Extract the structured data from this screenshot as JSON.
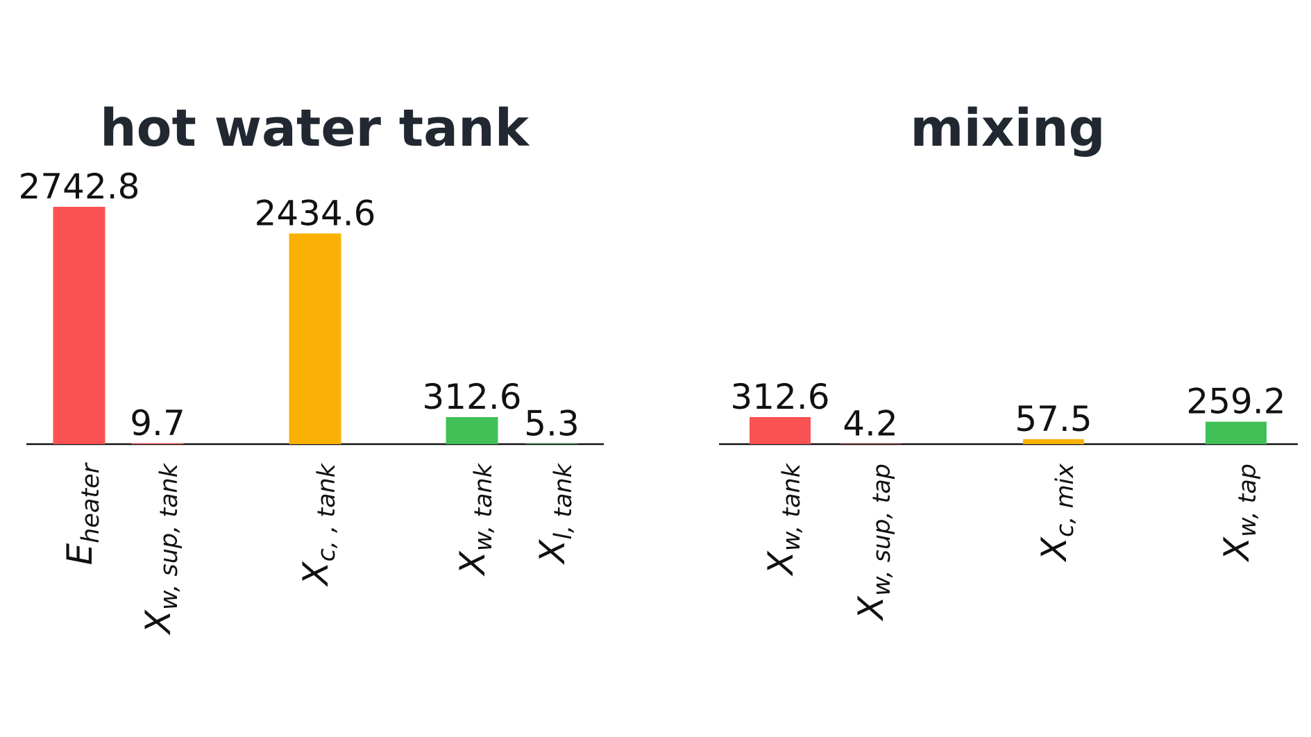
{
  "chart_data": [
    {
      "type": "bar",
      "title": "hot water tank",
      "categories": [
        {
          "main": "E",
          "sub": "heater"
        },
        {
          "main": "X",
          "sub": "w, sup, tank"
        },
        {
          "main": "X",
          "sub": "c, , tank"
        },
        {
          "main": "X",
          "sub": "w, tank"
        },
        {
          "main": "X",
          "sub": "l, tank"
        }
      ],
      "values": [
        2742.8,
        9.7,
        2434.6,
        312.6,
        5.3
      ],
      "value_labels": [
        "2742.8",
        "9.7",
        "2434.6",
        "312.6",
        "5.3"
      ],
      "colors": [
        "#fa5252",
        "#fa5252",
        "#fab005",
        "#40c057",
        "#40c057"
      ],
      "xlabel": "",
      "ylabel": "",
      "ylim": [
        0,
        2742.8
      ],
      "grid": false
    },
    {
      "type": "bar",
      "title": "mixing",
      "categories": [
        {
          "main": "X",
          "sub": "w, tank"
        },
        {
          "main": "X",
          "sub": "w, sup, tap"
        },
        {
          "main": "X",
          "sub": "c, mix"
        },
        {
          "main": "X",
          "sub": "w, tap"
        }
      ],
      "values": [
        312.6,
        4.2,
        57.5,
        259.2
      ],
      "value_labels": [
        "312.6",
        "4.2",
        "57.5",
        "259.2"
      ],
      "colors": [
        "#fa5252",
        "#fa5252",
        "#fab005",
        "#40c057"
      ],
      "xlabel": "",
      "ylabel": "",
      "ylim": [
        0,
        312.6
      ],
      "grid": false
    }
  ]
}
